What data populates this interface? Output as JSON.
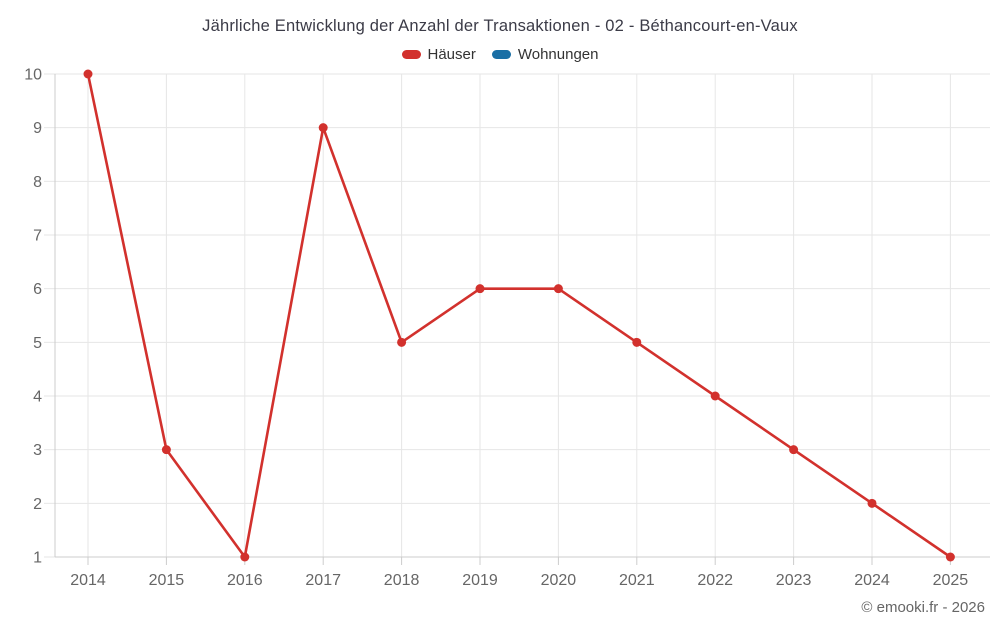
{
  "chart_data": {
    "type": "line",
    "title": "Jährliche Entwicklung der Anzahl der Transaktionen - 02 - Béthancourt-en-Vaux",
    "categories": [
      "2014",
      "2015",
      "2016",
      "2017",
      "2018",
      "2019",
      "2020",
      "2021",
      "2022",
      "2023",
      "2024",
      "2025"
    ],
    "series": [
      {
        "name": "Häuser",
        "color": "#d2312d",
        "values": [
          10,
          3,
          1,
          9,
          5,
          6,
          6,
          5,
          4,
          3,
          2,
          1
        ]
      },
      {
        "name": "Wohnungen",
        "color": "#1a6fa5",
        "values": []
      }
    ],
    "xlabel": "",
    "ylabel": "",
    "ylim": [
      1,
      10
    ],
    "yticks": [
      1,
      2,
      3,
      4,
      5,
      6,
      7,
      8,
      9,
      10
    ],
    "grid": true,
    "legend_position": "top"
  },
  "footer": {
    "credit": "© emooki.fr - 2026"
  },
  "colors": {
    "grid": "#e6e6e6",
    "axis_line": "#cccccc",
    "axis_label": "#666666",
    "title_text": "#3b3b47",
    "background": "#ffffff"
  }
}
